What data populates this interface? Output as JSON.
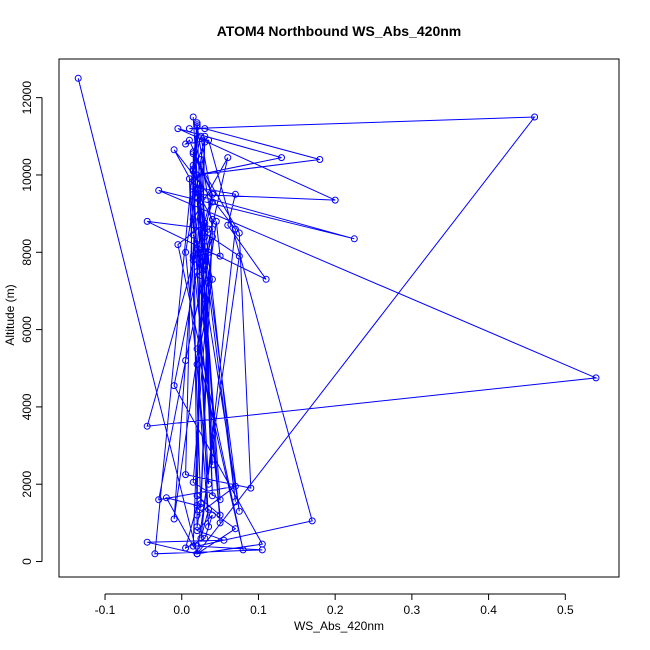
{
  "chart_data": {
    "type": "line",
    "title": "ATOM4 Northbound WS_Abs_420nm",
    "xlabel": "WS_Abs_420nm",
    "ylabel": "Altitude (m)",
    "xlim": [
      -0.16,
      0.57
    ],
    "ylim": [
      -400,
      13000
    ],
    "x_ticks": [
      -0.1,
      0.0,
      0.1,
      0.2,
      0.3,
      0.4,
      0.5
    ],
    "x_tick_labels": [
      "-0.1",
      "0.0",
      "0.1",
      "0.2",
      "0.3",
      "0.4",
      "0.5"
    ],
    "y_ticks": [
      0,
      2000,
      4000,
      6000,
      8000,
      10000,
      12000
    ],
    "y_tick_labels": [
      "0",
      "2000",
      "4000",
      "6000",
      "8000",
      "10000",
      "12000"
    ],
    "grid": false,
    "series": [
      {
        "color": "#0000ff",
        "marker": "open-circle",
        "x": [
          -0.135,
          0.02,
          0.46,
          0.01,
          0.03,
          0.18,
          0.02,
          0.13,
          -0.005,
          0.2,
          0.015,
          0.225,
          -0.03,
          0.54,
          -0.045,
          0.04,
          0.01,
          0.005,
          0.035,
          0.17,
          0.02,
          0.105,
          -0.035,
          0.02,
          0.015,
          0.07,
          0.06,
          0.11,
          -0.045,
          0.035,
          0.03,
          0.075,
          0.02,
          0.105,
          -0.01,
          0.025,
          0.04,
          0.015,
          0.075,
          0.09,
          0.005,
          0.015,
          0.025,
          0.04,
          0.03,
          0.015,
          -0.02,
          0.02,
          0.005,
          0.03,
          0.04,
          0.02,
          0.055,
          -0.045,
          0.02,
          0.07,
          0.035,
          0.025,
          0.07,
          -0.01,
          0.04,
          0.02,
          0.08,
          -0.005,
          0.03,
          0.025,
          0.02,
          0.07,
          -0.03,
          0.005,
          0.035,
          0.02,
          0.05,
          0.015,
          0.04,
          0.025,
          0.06,
          0.015,
          0.075,
          0.03,
          0.04,
          0.02,
          0.035,
          0.015,
          0.07,
          0.025,
          0.015,
          -0.01,
          0.045,
          0.05,
          0.02,
          0.03,
          0.015,
          0.02,
          0.04,
          0.025,
          0.01,
          0.02,
          0.035,
          0.005,
          0.03,
          0.02,
          0.05,
          0.015,
          0.02,
          0.04,
          0.03,
          0.015,
          0.02,
          0.025,
          0.035,
          0.02,
          0.05,
          0.015,
          0.03,
          0.04,
          0.02,
          0.03,
          0.015
        ],
        "y": [
          12500,
          200,
          11500,
          11200,
          11200,
          10400,
          10000,
          10450,
          11200,
          9350,
          9500,
          8350,
          9600,
          4750,
          3500,
          9500,
          10900,
          10800,
          10900,
          1050,
          400,
          300,
          200,
          11350,
          9700,
          9500,
          8700,
          7300,
          8800,
          8600,
          8500,
          7900,
          200,
          450,
          4550,
          8000,
          9500,
          10550,
          8500,
          1900,
          2250,
          10150,
          11000,
          9300,
          8650,
          400,
          1650,
          1450,
          350,
          600,
          1200,
          800,
          550,
          500,
          200,
          850,
          1350,
          600,
          8600,
          10650,
          8850,
          5500,
          300,
          8200,
          8750,
          10400,
          1200,
          1950,
          1600,
          5200,
          8000,
          9800,
          1600,
          2050,
          8400,
          7400,
          10450,
          8850,
          1300,
          8150,
          7300,
          5100,
          900,
          10250,
          1550,
          9650,
          7900,
          1100,
          8800,
          7900,
          8100,
          10850,
          10100,
          11300,
          8600,
          1400,
          9900,
          7500,
          2000,
          8000,
          11000,
          1700,
          1200,
          7800,
          11250,
          1700,
          8400,
          10600,
          900,
          1500,
          7200,
          8200,
          1000,
          11500,
          6800,
          2500,
          9400,
          7700,
          8450
        ]
      }
    ]
  }
}
